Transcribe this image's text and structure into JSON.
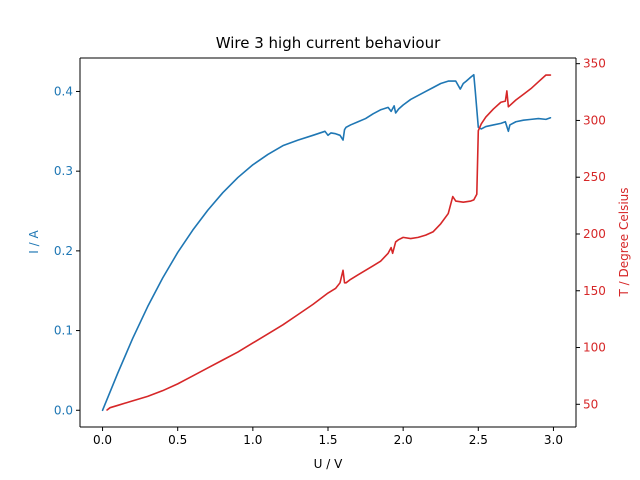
{
  "chart_data": {
    "type": "line",
    "title": "Wire 3 high current behaviour",
    "xlabel": "U / V",
    "ylabel_left": "I / A",
    "ylabel_right": "T / Degree Celsius",
    "xlim": [
      -0.15,
      3.15
    ],
    "ylim_left": [
      -0.021,
      0.442
    ],
    "ylim_right": [
      30,
      355
    ],
    "x_ticks": [
      0.0,
      0.5,
      1.0,
      1.5,
      2.0,
      2.5,
      3.0
    ],
    "x_tick_labels": [
      "0.0",
      "0.5",
      "1.0",
      "1.5",
      "2.0",
      "2.5",
      "3.0"
    ],
    "y_left_ticks": [
      0.0,
      0.1,
      0.2,
      0.3,
      0.4
    ],
    "y_left_tick_labels": [
      "0.0",
      "0.1",
      "0.2",
      "0.3",
      "0.4"
    ],
    "y_right_ticks": [
      50,
      100,
      150,
      200,
      250,
      300,
      350
    ],
    "y_right_tick_labels": [
      "50",
      "100",
      "150",
      "200",
      "250",
      "300",
      "350"
    ],
    "grid": false,
    "colors": {
      "current": "#1f77b4",
      "temperature": "#d62728"
    },
    "series": [
      {
        "axis": "left",
        "x": [
          0.0,
          0.1,
          0.2,
          0.3,
          0.4,
          0.5,
          0.6,
          0.7,
          0.8,
          0.9,
          1.0,
          1.1,
          1.2,
          1.3,
          1.4,
          1.48,
          1.5,
          1.52,
          1.55,
          1.58,
          1.6,
          1.61,
          1.62,
          1.65,
          1.7,
          1.75,
          1.8,
          1.85,
          1.9,
          1.92,
          1.94,
          1.95,
          1.97,
          2.0,
          2.05,
          2.1,
          2.15,
          2.2,
          2.25,
          2.3,
          2.35,
          2.38,
          2.4,
          2.42,
          2.45,
          2.47,
          2.48,
          2.5,
          2.52,
          2.55,
          2.6,
          2.65,
          2.68,
          2.7,
          2.71,
          2.75,
          2.8,
          2.85,
          2.9,
          2.95,
          2.98
        ],
        "y": [
          0.0,
          0.046,
          0.09,
          0.13,
          0.166,
          0.198,
          0.226,
          0.251,
          0.273,
          0.292,
          0.308,
          0.321,
          0.332,
          0.339,
          0.345,
          0.35,
          0.345,
          0.348,
          0.347,
          0.345,
          0.339,
          0.352,
          0.355,
          0.358,
          0.362,
          0.366,
          0.372,
          0.377,
          0.38,
          0.375,
          0.382,
          0.373,
          0.378,
          0.383,
          0.39,
          0.395,
          0.4,
          0.405,
          0.41,
          0.413,
          0.413,
          0.403,
          0.41,
          0.413,
          0.418,
          0.421,
          0.4,
          0.355,
          0.353,
          0.356,
          0.358,
          0.36,
          0.362,
          0.35,
          0.358,
          0.362,
          0.364,
          0.365,
          0.366,
          0.365,
          0.367
        ]
      },
      {
        "axis": "right",
        "x": [
          0.03,
          0.05,
          0.1,
          0.15,
          0.2,
          0.3,
          0.4,
          0.5,
          0.6,
          0.7,
          0.8,
          0.9,
          1.0,
          1.1,
          1.2,
          1.3,
          1.4,
          1.5,
          1.55,
          1.58,
          1.6,
          1.61,
          1.62,
          1.65,
          1.7,
          1.75,
          1.8,
          1.85,
          1.9,
          1.92,
          1.93,
          1.95,
          1.97,
          2.0,
          2.05,
          2.1,
          2.15,
          2.2,
          2.25,
          2.3,
          2.33,
          2.35,
          2.4,
          2.45,
          2.47,
          2.49,
          2.5,
          2.52,
          2.55,
          2.6,
          2.65,
          2.68,
          2.69,
          2.7,
          2.75,
          2.8,
          2.85,
          2.9,
          2.95,
          2.98
        ],
        "y": [
          45,
          47,
          49,
          51,
          53,
          57,
          62,
          68,
          75,
          82,
          89,
          96,
          104,
          112,
          120,
          129,
          138,
          148,
          152,
          157,
          168,
          157,
          157,
          160,
          164,
          168,
          172,
          176,
          183,
          188,
          183,
          193,
          195,
          197,
          196,
          197,
          199,
          202,
          209,
          218,
          233,
          229,
          228,
          229,
          230,
          235,
          291,
          297,
          303,
          310,
          316,
          317,
          326,
          312,
          318,
          323,
          328,
          334,
          340,
          340
        ]
      }
    ]
  }
}
